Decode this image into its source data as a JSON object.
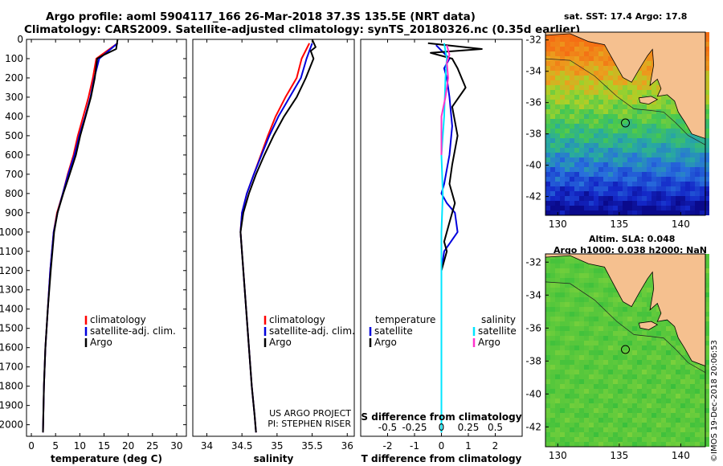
{
  "header": {
    "title_line1": "Argo profile: aoml 5904117_166 26-Mar-2018 37.3S 135.5E (NRT data)",
    "title_line2": "Climatology: CARS2009. Satellite-adjusted climatology: synTS_20180326.nc (0.35d earlier)"
  },
  "colors": {
    "climatology": "#ff0000",
    "satellite_adj": "#0000dd",
    "argo": "#000000",
    "salinity_satellite": "#00e5ff",
    "salinity_argo": "#ff33cc",
    "land": "#f5c08f"
  },
  "chart_data": [
    {
      "type": "line",
      "xlabel": "temperature (deg C)",
      "ylabel": "",
      "xlim": [
        -1,
        32
      ],
      "ylim": [
        2060,
        0
      ],
      "x_ticks": [
        0,
        5,
        10,
        15,
        20,
        25,
        30
      ],
      "y_ticks": [
        0,
        100,
        200,
        300,
        400,
        500,
        600,
        700,
        800,
        900,
        1000,
        1100,
        1200,
        1300,
        1400,
        1500,
        1600,
        1700,
        1800,
        1900,
        2000
      ],
      "legend": [
        "climatology",
        "satellite-adj. clim.",
        "Argo"
      ],
      "series": [
        {
          "name": "climatology",
          "color": "#ff0000",
          "x": [
            17.8,
            13.4,
            12.7,
            11.8,
            10.7,
            9.6,
            8.7,
            7.5,
            6.5,
            5.3,
            4.6,
            3.9,
            3.4,
            2.9,
            2.6,
            2.4
          ],
          "y": [
            20,
            100,
            200,
            300,
            400,
            500,
            600,
            700,
            800,
            900,
            1000,
            1200,
            1400,
            1600,
            1800,
            2040
          ]
        },
        {
          "name": "satellite-adj. clim.",
          "color": "#0000dd",
          "x": [
            17.8,
            14.0,
            13.0,
            12.2,
            11.1,
            9.9,
            8.9,
            7.6,
            6.5,
            5.4,
            4.6,
            3.9,
            3.4,
            2.9,
            2.6,
            2.4
          ],
          "y": [
            20,
            100,
            200,
            300,
            400,
            500,
            600,
            700,
            800,
            900,
            1000,
            1200,
            1400,
            1600,
            1800,
            2040
          ]
        },
        {
          "name": "Argo",
          "color": "#000000",
          "x": [
            17.8,
            17.5,
            15.0,
            13.6,
            13.1,
            12.3,
            11.2,
            10.1,
            9.2,
            7.9,
            6.6,
            5.4,
            4.7,
            4.0,
            3.4,
            2.9,
            2.6,
            2.4
          ],
          "y": [
            0,
            50,
            80,
            100,
            200,
            300,
            400,
            500,
            600,
            700,
            800,
            900,
            1000,
            1200,
            1400,
            1600,
            1800,
            2040
          ]
        }
      ]
    },
    {
      "type": "line",
      "xlabel": "salinity",
      "ylabel": "",
      "xlim": [
        33.8,
        36.1
      ],
      "ylim": [
        2060,
        0
      ],
      "x_ticks": [
        34,
        34.5,
        35,
        35.5,
        36
      ],
      "x_tick_labels": [
        "34",
        "34.5",
        "35",
        "35.5",
        "36"
      ],
      "legend": [
        "climatology",
        "satellite-adj. clim.",
        "Argo"
      ],
      "annotations": [
        "US ARGO PROJECT",
        "PI: STEPHEN RISER"
      ],
      "series": [
        {
          "name": "climatology",
          "color": "#ff0000",
          "x": [
            35.46,
            35.35,
            35.28,
            35.12,
            34.98,
            34.87,
            34.77,
            34.67,
            34.57,
            34.5,
            34.48,
            34.52,
            34.56,
            34.6,
            34.64,
            34.68,
            34.7
          ],
          "y": [
            20,
            100,
            200,
            300,
            400,
            500,
            600,
            700,
            800,
            900,
            1000,
            1200,
            1400,
            1600,
            1800,
            1950,
            2040
          ]
        },
        {
          "name": "satellite-adj. clim.",
          "color": "#0000dd",
          "x": [
            35.5,
            35.42,
            35.34,
            35.18,
            35.02,
            34.89,
            34.78,
            34.67,
            34.57,
            34.5,
            34.48,
            34.52,
            34.56,
            34.6,
            34.64,
            34.68,
            34.7
          ],
          "y": [
            20,
            100,
            200,
            300,
            400,
            500,
            600,
            700,
            800,
            900,
            1000,
            1200,
            1400,
            1600,
            1800,
            1950,
            2040
          ]
        },
        {
          "name": "Argo",
          "color": "#000000",
          "x": [
            35.5,
            35.55,
            35.48,
            35.52,
            35.41,
            35.28,
            35.1,
            34.95,
            34.82,
            34.7,
            34.6,
            34.52,
            34.48,
            34.52,
            34.56,
            34.6,
            34.64,
            34.68,
            34.7
          ],
          "y": [
            0,
            40,
            60,
            100,
            200,
            300,
            400,
            500,
            600,
            700,
            800,
            900,
            1000,
            1200,
            1400,
            1600,
            1800,
            1950,
            2040
          ]
        }
      ]
    },
    {
      "type": "line",
      "xlabel": "T difference from climatology",
      "ylabel": "",
      "xlim": [
        -3,
        3
      ],
      "ylim": [
        2060,
        0
      ],
      "x_ticks": [
        -2,
        -1,
        0,
        1,
        2
      ],
      "secondary_axis_label": "S difference from climatology",
      "secondary_x_ticks": [
        "-0.5",
        "-0.25",
        "0",
        "0.25",
        "0.5"
      ],
      "legend_left_title": "temperature",
      "legend_left": [
        "satellite",
        "Argo"
      ],
      "legend_right_title": "salinity",
      "legend_right": [
        "satellite",
        "Argo"
      ],
      "series": [
        {
          "name": "satellite",
          "color": "#0000dd",
          "x": [
            -0.2,
            0.3,
            0.1,
            0.2,
            0.3,
            0.4,
            0.3,
            0.1,
            0.0,
            0.2,
            0.5,
            0.6,
            0.1,
            0.0,
            0.0
          ],
          "y": [
            30,
            100,
            150,
            200,
            300,
            450,
            600,
            750,
            800,
            850,
            900,
            1000,
            1100,
            1200,
            2040
          ]
        },
        {
          "name": "Argo",
          "color": "#000000",
          "x": [
            -0.5,
            1.5,
            -0.4,
            0.4,
            0.6,
            0.9,
            0.4,
            0.6,
            0.4,
            0.3,
            0.5,
            0.3,
            0.1,
            0.2,
            0.0,
            0.0
          ],
          "y": [
            20,
            50,
            70,
            100,
            150,
            250,
            350,
            500,
            650,
            750,
            850,
            950,
            1050,
            1100,
            1200,
            2040
          ]
        },
        {
          "name": "satellite",
          "color": "#00e5ff",
          "x": [
            0.1,
            0.2,
            0.15,
            0.1,
            0.0,
            0.05,
            0.0,
            0.0
          ],
          "y": [
            20,
            100,
            200,
            400,
            600,
            800,
            1000,
            2040
          ]
        },
        {
          "name": "Argo",
          "color": "#ff33cc",
          "x": [
            0.2,
            0.3,
            0.2,
            0.25,
            0.15,
            0.0,
            0.0
          ],
          "y": [
            30,
            80,
            120,
            200,
            300,
            400,
            600
          ]
        }
      ]
    }
  ],
  "maps": [
    {
      "caption": "sat. SST: 17.4 Argo: 17.8",
      "lon_ticks": [
        "130",
        "135",
        "140"
      ],
      "lat_ticks": [
        "-32",
        "-34",
        "-36",
        "-38",
        "-40",
        "-42"
      ],
      "float_position": {
        "lon": 135.5,
        "lat": -37.3
      }
    },
    {
      "caption_line1": "Altim. SLA: 0.048",
      "caption_line2": "Argo h1000: 0.038 h2000: NaN",
      "lon_ticks": [
        "130",
        "135",
        "140"
      ],
      "lat_ticks": [
        "-32",
        "-34",
        "-36",
        "-38",
        "-40",
        "-42"
      ],
      "float_position": {
        "lon": 135.5,
        "lat": -37.3
      }
    }
  ],
  "footer": {
    "credit": "©IMOS 19-Dec-2018 20:06:53"
  }
}
